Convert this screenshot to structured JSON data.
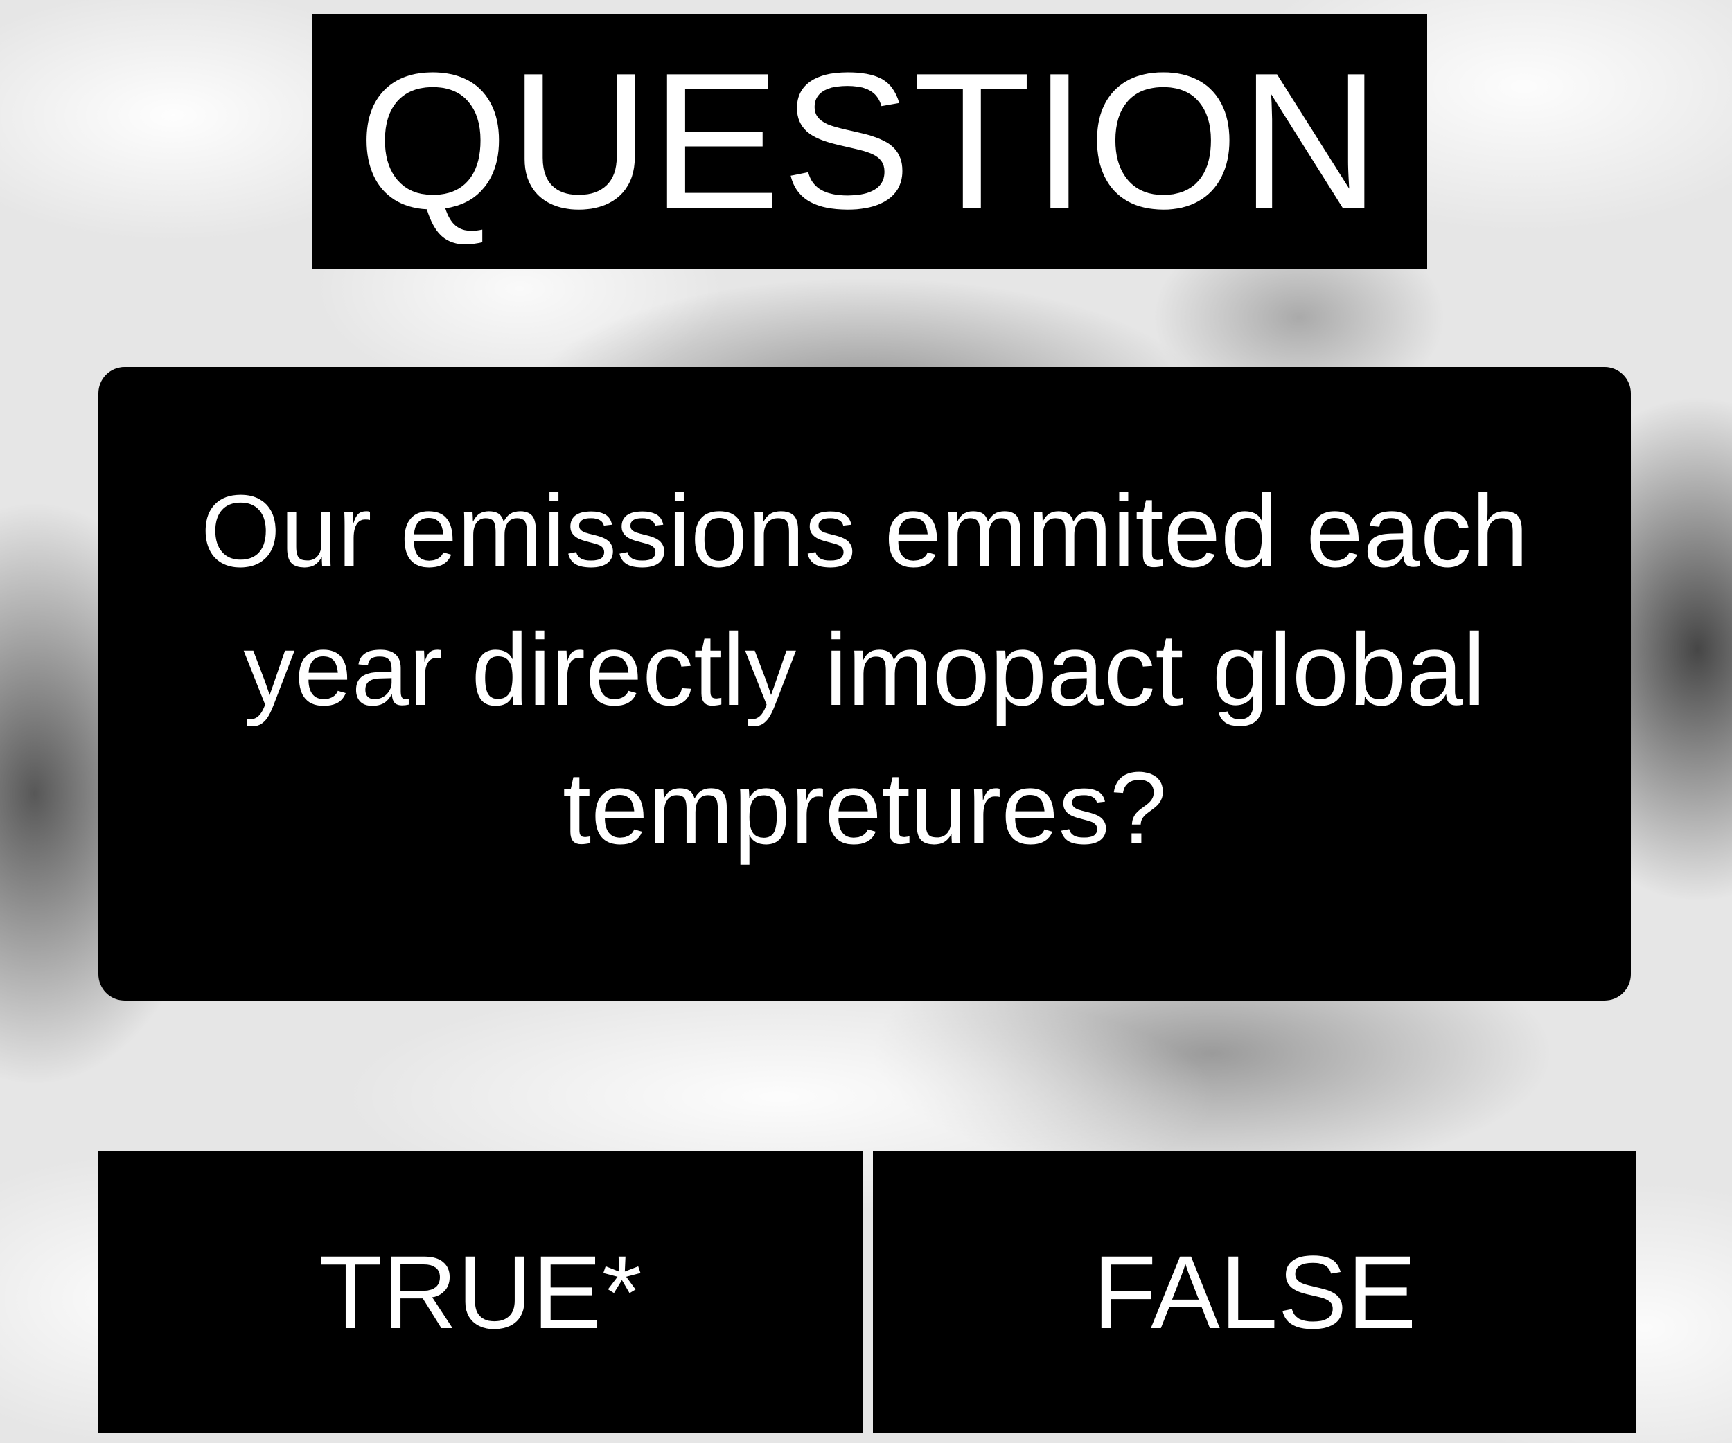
{
  "header": {
    "title": "QUESTION"
  },
  "question": {
    "text": "Our emissions emmited each year directly imopact global tempretures?"
  },
  "answers": [
    {
      "label": "TRUE*"
    },
    {
      "label": "FALSE"
    }
  ],
  "colors": {
    "panel": "#000000",
    "text": "#ffffff",
    "background": "#e6e6e6"
  }
}
